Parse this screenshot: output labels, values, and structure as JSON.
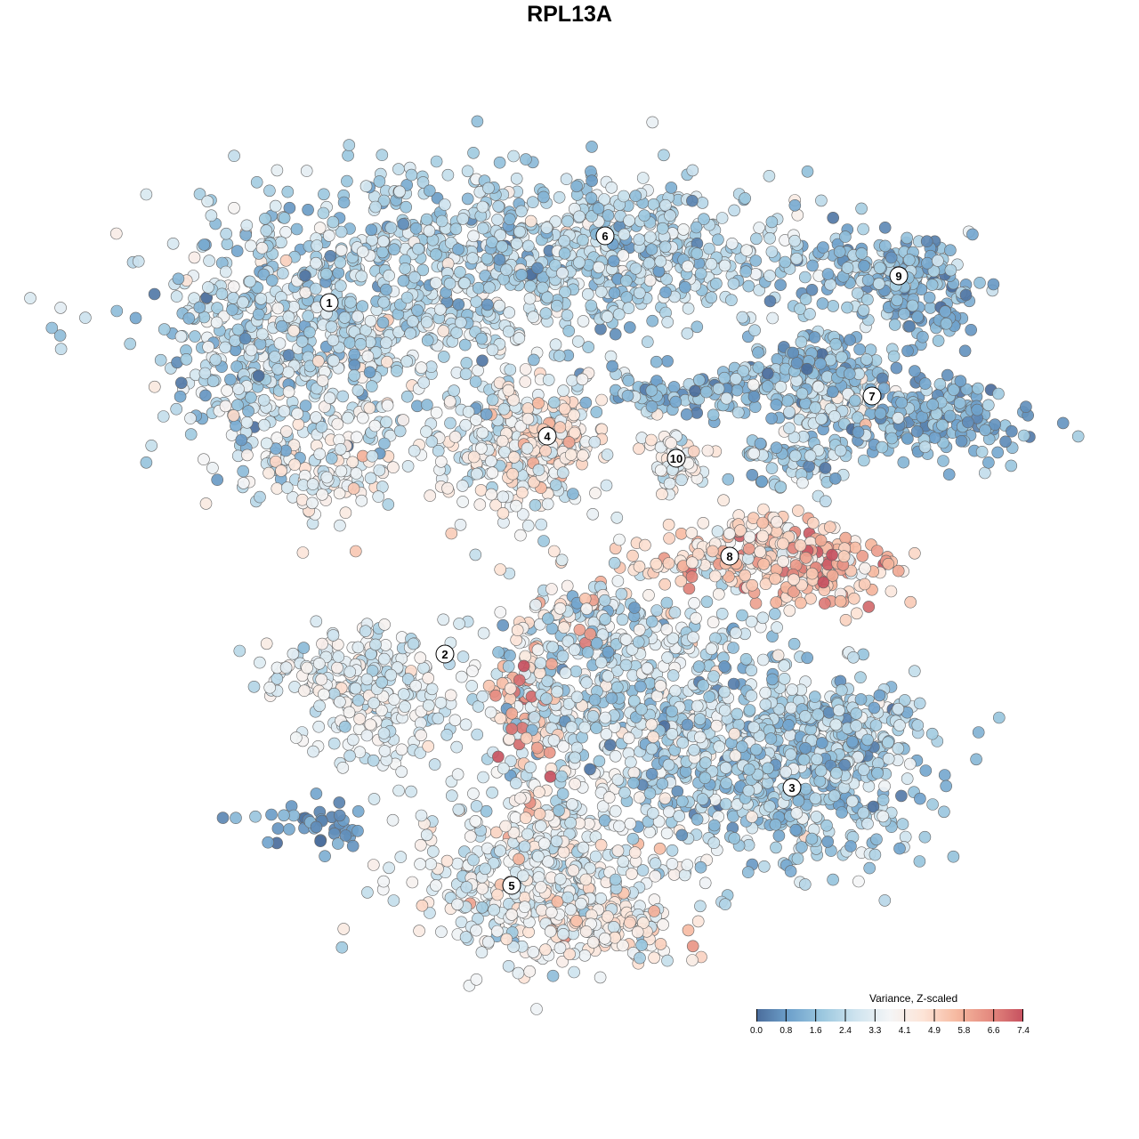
{
  "chart_data": {
    "type": "scatter",
    "title": "RPL13A",
    "xlabel": "",
    "ylabel": "",
    "xlim": [
      -64,
      64
    ],
    "ylim": [
      -64,
      64
    ],
    "legend": {
      "title": "Variance, Z-scaled",
      "position": "bottom-right",
      "ticks": [
        "0.0",
        "0.8",
        "1.6",
        "2.4",
        "3.3",
        "4.1",
        "4.9",
        "5.8",
        "6.6",
        "7.4"
      ],
      "range": [
        0,
        7.4
      ],
      "colors": [
        "#4a6c9b",
        "#6fa2cc",
        "#9cc8df",
        "#cfe4ef",
        "#f4f5f6",
        "#fde4d7",
        "#f6b9a0",
        "#e48a7f",
        "#c6505f"
      ]
    },
    "note": "Point clouds summarised as Gaussian blobs: [x, y, sx, sy, n, mean value, sd]",
    "clusters": [
      {
        "label": "1",
        "label_pos": [
          -27,
          30
        ],
        "blobs": [
          [
            -30,
            26,
            11,
            8,
            520,
            2.6,
            0.9
          ],
          [
            -28,
            11,
            6,
            4,
            120,
            3.4,
            0.8
          ],
          [
            -37,
            24,
            5,
            6,
            80,
            1.6,
            0.7
          ]
        ]
      },
      {
        "label": "6",
        "label_pos": [
          4,
          37.5
        ],
        "blobs": [
          [
            -8,
            37,
            17,
            5,
            500,
            2.2,
            0.8
          ],
          [
            9,
            35,
            10,
            5,
            260,
            2.3,
            0.8
          ],
          [
            -12,
            29,
            8,
            4,
            120,
            2.6,
            0.8
          ]
        ]
      },
      {
        "label": "4",
        "label_pos": [
          -2.5,
          15
        ],
        "blobs": [
          [
            -6,
            14,
            6.5,
            5.5,
            260,
            3.5,
            0.9
          ],
          [
            -3,
            15,
            3.5,
            3,
            90,
            4.8,
            0.5
          ]
        ]
      },
      {
        "label": "9",
        "label_pos": [
          37,
          33
        ],
        "blobs": [
          [
            35,
            33,
            7,
            3,
            180,
            1.6,
            0.7
          ],
          [
            40,
            30,
            3,
            4,
            60,
            1.0,
            0.5
          ]
        ]
      },
      {
        "label": "7",
        "label_pos": [
          34,
          19.5
        ],
        "blobs": [
          [
            40,
            17,
            7,
            3,
            200,
            1.2,
            0.6
          ],
          [
            16,
            20,
            10,
            1.8,
            140,
            1.5,
            0.6
          ],
          [
            27,
            23,
            5,
            2.5,
            120,
            1.6,
            0.7
          ],
          [
            30,
            19,
            4,
            2,
            60,
            3.2,
            0.8
          ]
        ]
      },
      {
        "label": "10",
        "label_pos": [
          12,
          12.5
        ],
        "blobs": [
          [
            12,
            12,
            2.5,
            2.5,
            60,
            3.6,
            0.7
          ],
          [
            25,
            12,
            5,
            2,
            80,
            2.0,
            0.8
          ]
        ]
      },
      {
        "label": "8",
        "label_pos": [
          18,
          1.5
        ],
        "blobs": [
          [
            27,
            0,
            6,
            3,
            180,
            5.4,
            1.0
          ],
          [
            16,
            1,
            5,
            1.8,
            90,
            4.8,
            1.1
          ],
          [
            22,
            4,
            4,
            2,
            60,
            4.5,
            0.8
          ]
        ]
      },
      {
        "label": "2",
        "label_pos": [
          -14,
          -9.5
        ],
        "blobs": [
          [
            -24,
            -11,
            6.5,
            3,
            150,
            3.3,
            0.7
          ],
          [
            -21,
            -17,
            6,
            3.5,
            110,
            3.2,
            0.7
          ]
        ]
      },
      {
        "label": "3",
        "label_pos": [
          25,
          -24.5
        ],
        "blobs": [
          [
            24,
            -22,
            10,
            7,
            600,
            2.0,
            0.8
          ],
          [
            31,
            -17,
            5,
            3,
            100,
            2.2,
            0.8
          ]
        ]
      },
      {
        "label": "5",
        "label_pos": [
          -6.5,
          -35.5
        ],
        "blobs": [
          [
            -3,
            -34,
            9,
            6,
            480,
            3.3,
            0.8
          ],
          [
            5,
            -40,
            5,
            2.5,
            100,
            4.3,
            0.9
          ]
        ]
      },
      {
        "label": "",
        "label_pos": null,
        "blobs": [
          [
            6,
            -14,
            10,
            8,
            500,
            2.5,
            0.9
          ],
          [
            -5,
            -16,
            2.5,
            7,
            90,
            5.5,
            1.2
          ],
          [
            3,
            -5,
            5,
            3,
            80,
            3.8,
            1.3
          ],
          [
            -28.5,
            -28.5,
            4.5,
            1.5,
            40,
            0.7,
            0.4
          ]
        ]
      }
    ]
  }
}
